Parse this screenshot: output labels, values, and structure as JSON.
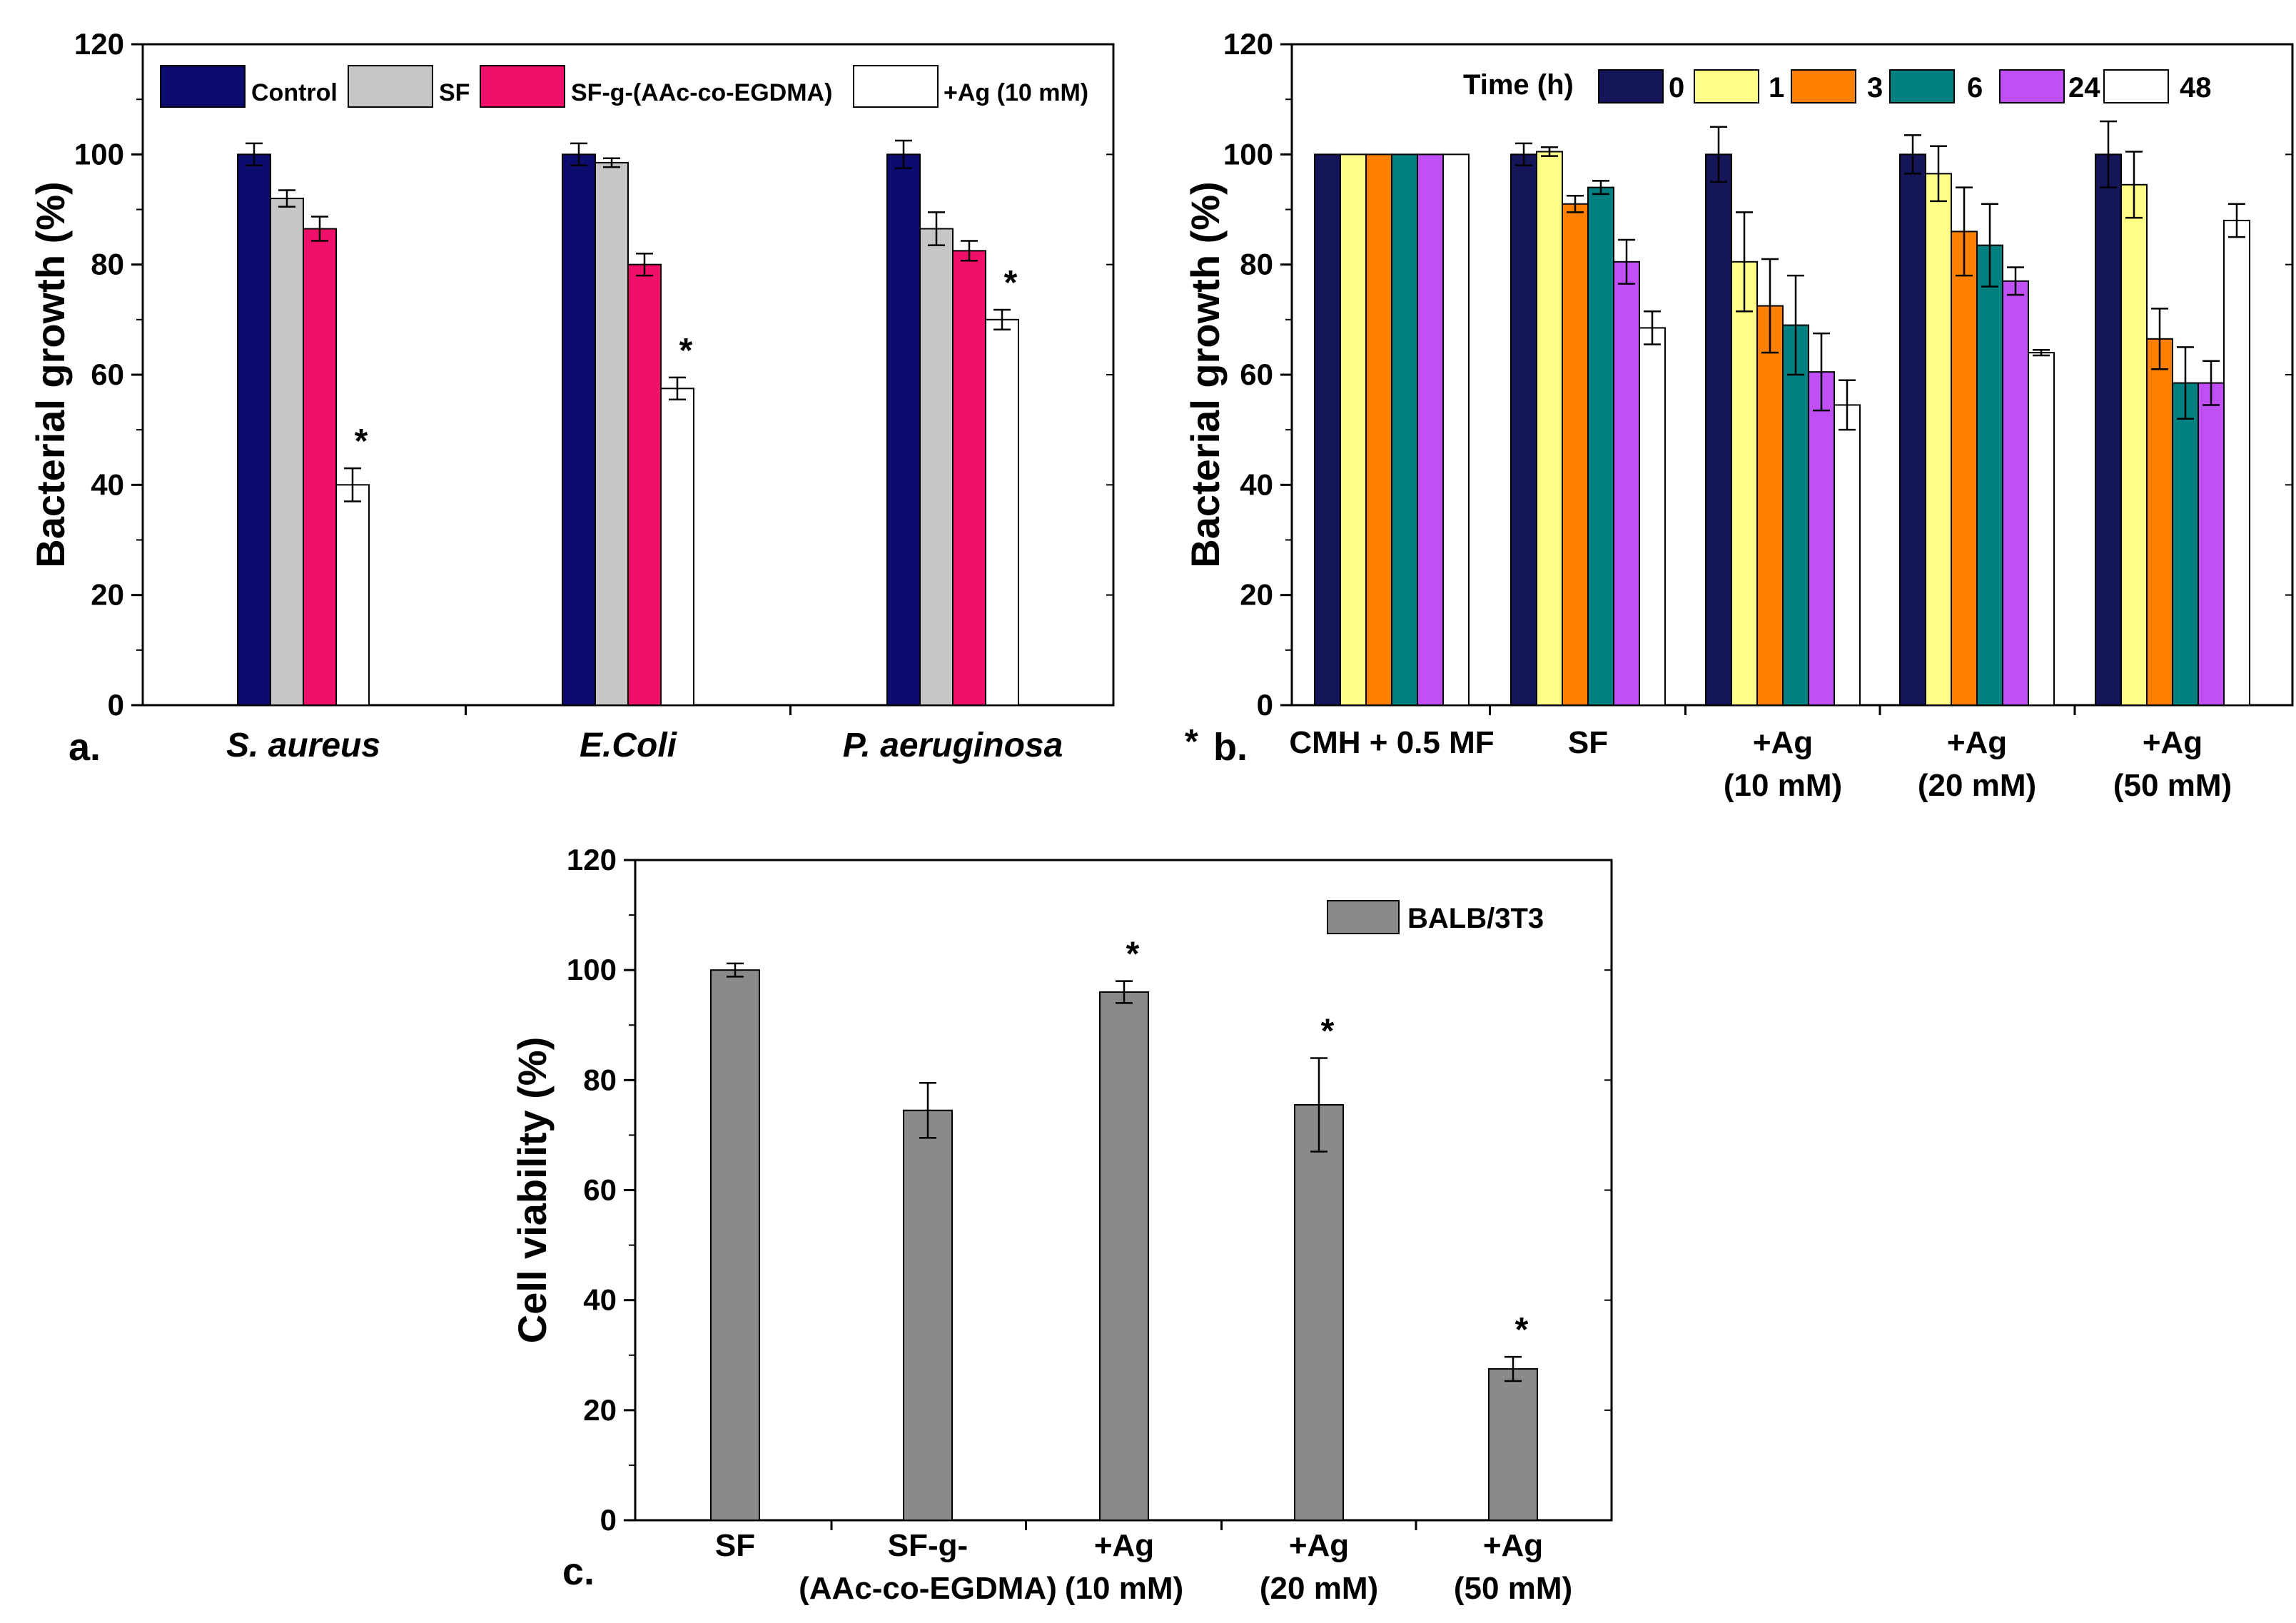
{
  "colors": {
    "Control": "#0c0c6e",
    "SF": "#c6c6c6",
    "SF-g-(AAc-co-EGDMA)": "#f0106c",
    "+Ag (10 mM)": "#ffffff",
    "t0": "#15155a",
    "t1": "#ffff88",
    "t3": "#ff7f00",
    "t6": "#008080",
    "t24": "#c050f5",
    "t48": "#ffffff",
    "BALB/3T3": "#8a8a8a"
  },
  "chart_data": [
    {
      "id": "a",
      "panel_label": "a.",
      "type": "bar",
      "ylabel": "Bacterial growth (%)",
      "ylim": [
        0,
        120
      ],
      "yticks": [
        "0",
        "20",
        "40",
        "60",
        "80",
        "100",
        "120"
      ],
      "categories": [
        "S. aureus",
        "E.Coli",
        "P. aeruginosa"
      ],
      "legend_position": "top",
      "series": [
        {
          "name": "Control",
          "color_key": "Control",
          "values": [
            100,
            100,
            100
          ],
          "errors": [
            2,
            2,
            2.5
          ]
        },
        {
          "name": "SF",
          "color_key": "SF",
          "values": [
            92,
            98.5,
            86.5
          ],
          "errors": [
            1.5,
            0.8,
            3
          ]
        },
        {
          "name": "SF-g-(AAc-co-EGDMA)",
          "color_key": "SF-g-(AAc-co-EGDMA)",
          "values": [
            86.5,
            80,
            82.5
          ],
          "errors": [
            2.2,
            2,
            1.8
          ]
        },
        {
          "name": "+Ag (10 mM)",
          "color_key": "+Ag (10 mM)",
          "values": [
            40,
            57.5,
            70
          ],
          "errors": [
            3,
            2,
            1.8
          ]
        }
      ],
      "stars": [
        {
          "text": "*",
          "category": 0,
          "series": 3
        },
        {
          "text": "*",
          "category": 1,
          "series": 3
        },
        {
          "text": "*",
          "category": 2,
          "series": 3
        }
      ]
    },
    {
      "id": "b",
      "panel_label": "b.",
      "axis_star": "*",
      "type": "bar",
      "ylabel": "Bacterial growth (%)",
      "ylim": [
        0,
        120
      ],
      "yticks": [
        "0",
        "20",
        "40",
        "60",
        "80",
        "100",
        "120"
      ],
      "legend_title": "Time (h)",
      "legend_position": "top",
      "categories": [
        [
          "CMH + 0.5 MF"
        ],
        [
          "SF"
        ],
        [
          "+Ag",
          "(10 mM)"
        ],
        [
          "+Ag",
          "(20 mM)"
        ],
        [
          "+Ag",
          "(50 mM)"
        ]
      ],
      "series": [
        {
          "name": "0",
          "color_key": "t0",
          "values": [
            100,
            100,
            100,
            100,
            100
          ],
          "errors": [
            0,
            2,
            5,
            3.5,
            6
          ]
        },
        {
          "name": "1",
          "color_key": "t1",
          "values": [
            100,
            100.5,
            80.5,
            96.5,
            94.5
          ],
          "errors": [
            0,
            0.8,
            9,
            5,
            6
          ]
        },
        {
          "name": "3",
          "color_key": "t3",
          "values": [
            100,
            91,
            72.5,
            86,
            66.5
          ],
          "errors": [
            0,
            1.5,
            8.5,
            8,
            5.5
          ]
        },
        {
          "name": "6",
          "color_key": "t6",
          "values": [
            100,
            94,
            69,
            83.5,
            58.5
          ],
          "errors": [
            0,
            1.2,
            9,
            7.5,
            6.5
          ]
        },
        {
          "name": "24",
          "color_key": "t24",
          "values": [
            100,
            80.5,
            60.5,
            77,
            58.5
          ],
          "errors": [
            0,
            4,
            7,
            2.5,
            4
          ]
        },
        {
          "name": "48",
          "color_key": "t48",
          "values": [
            100,
            68.5,
            54.5,
            64,
            88
          ],
          "errors": [
            0,
            3,
            4.5,
            0.5,
            3
          ]
        }
      ]
    },
    {
      "id": "c",
      "panel_label": "c.",
      "type": "bar",
      "ylabel": "Cell viability (%)",
      "ylim": [
        0,
        120
      ],
      "yticks": [
        "0",
        "20",
        "40",
        "60",
        "80",
        "100",
        "120"
      ],
      "legend_position": "top-right",
      "categories": [
        [
          "SF"
        ],
        [
          "SF-g-",
          "(AAc-co-EGDMA)"
        ],
        [
          "+Ag",
          "(10 mM)"
        ],
        [
          "+Ag",
          "(20 mM)"
        ],
        [
          "+Ag",
          "(50 mM)"
        ]
      ],
      "series": [
        {
          "name": "BALB/3T3",
          "color_key": "BALB/3T3",
          "values": [
            100,
            74.5,
            96,
            75.5,
            27.5
          ],
          "errors": [
            1.2,
            5,
            2,
            8.5,
            2.2
          ]
        }
      ],
      "stars": [
        {
          "text": "*",
          "category": 2,
          "series": 0
        },
        {
          "text": "*",
          "category": 3,
          "series": 0
        },
        {
          "text": "*",
          "category": 4,
          "series": 0
        }
      ]
    }
  ]
}
